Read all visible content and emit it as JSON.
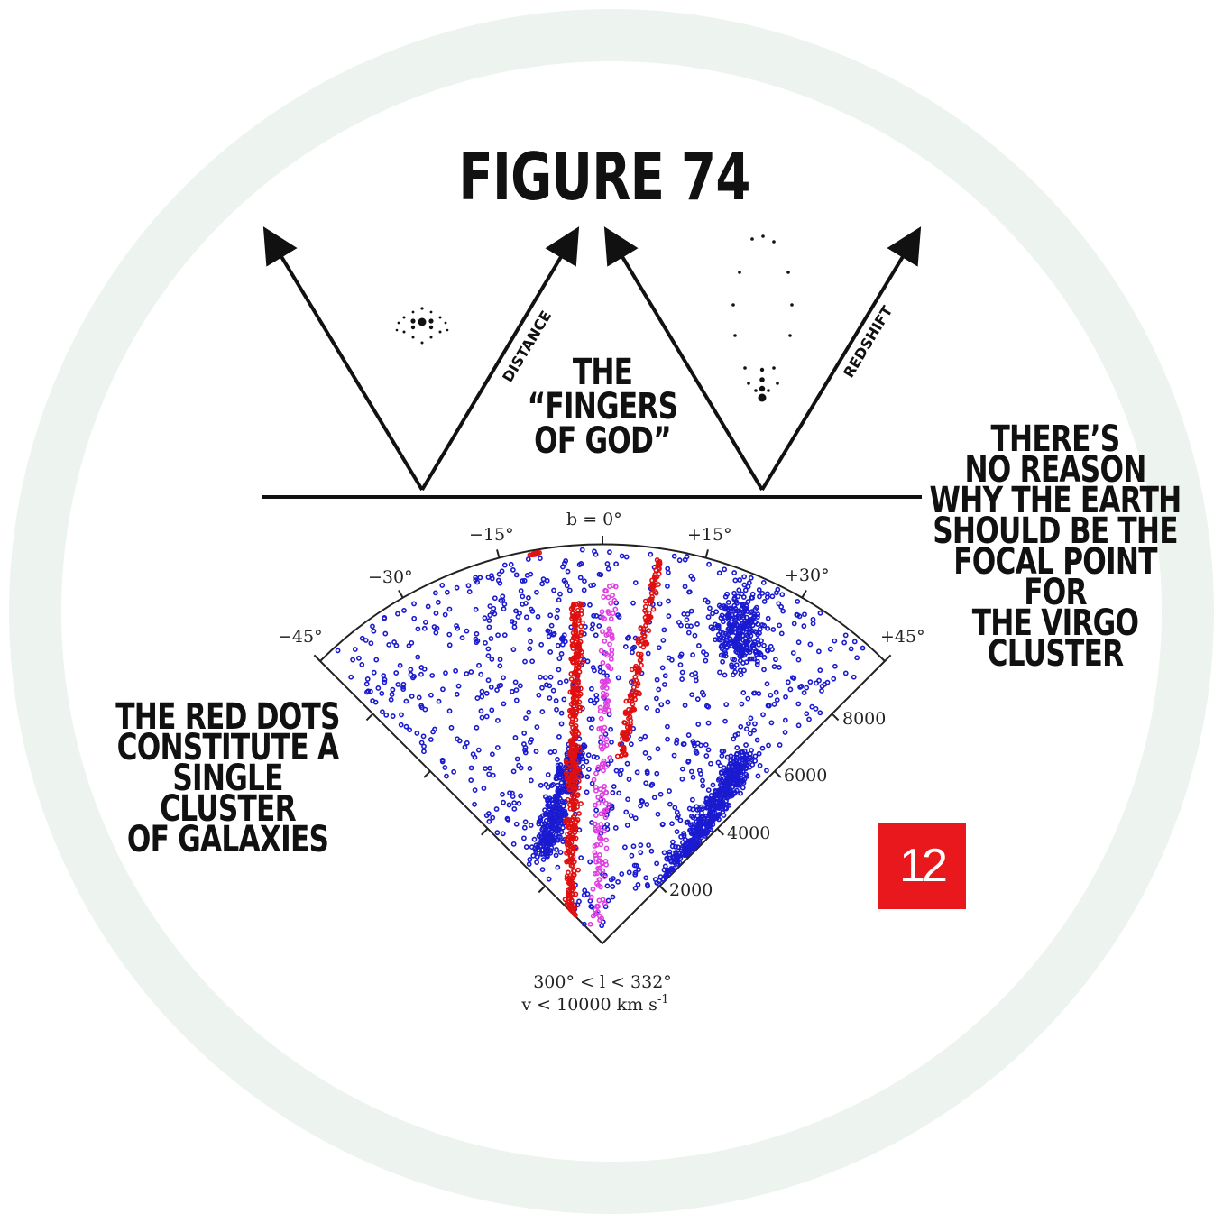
{
  "figure": {
    "title": "FIGURE 74",
    "center_note": [
      "THE",
      "“FINGERS",
      "OF GOD”"
    ],
    "right_note": [
      "THERE’S",
      "NO REASON",
      "WHY THE EARTH",
      "SHOULD BE THE",
      "FOCAL POINT FOR",
      "THE VIRGO",
      "CLUSTER"
    ],
    "left_note": [
      "THE RED DOTS",
      "CONSTITUTE A",
      "SINGLE CLUSTER",
      "OF GALAXIES"
    ],
    "badge": "12"
  },
  "schematic": {
    "left_axis_label": "DISTANCE",
    "right_axis_label": "REDSHIFT"
  },
  "wedge_plot": {
    "angle_labels": [
      "b = 0°",
      "−15°",
      "+15°",
      "−30°",
      "+30°",
      "−45°",
      "+45°"
    ],
    "velocity_labels": [
      "2000",
      "4000",
      "6000",
      "8000"
    ],
    "caption_line1": "300° < l < 332°",
    "caption_line2_prefix": "v < 10000 km s",
    "caption_line2_exp": "-1"
  },
  "colors": {
    "red_points": "#e01010",
    "blue_points": "#1a1ad0",
    "magenta_points": "#e040e0",
    "ring": "#edf3ef",
    "badge": "#e8181c"
  }
}
